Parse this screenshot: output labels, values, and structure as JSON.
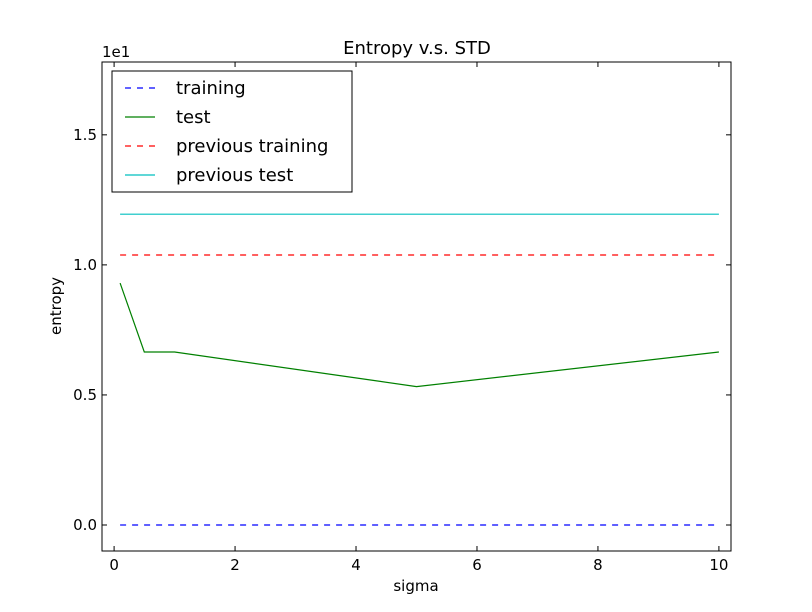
{
  "chart_data": {
    "type": "line",
    "title": "Entropy v.s. STD",
    "xlabel": "sigma",
    "ylabel": "entropy",
    "y_offset_label": "1e1",
    "xlim": [
      -0.2,
      10.2
    ],
    "ylim": [
      -0.1,
      1.78
    ],
    "x_ticks": [
      0,
      2,
      4,
      6,
      8,
      10
    ],
    "x_tick_labels": [
      "0",
      "2",
      "4",
      "6",
      "8",
      "10"
    ],
    "y_ticks": [
      0.0,
      0.5,
      1.0,
      1.5
    ],
    "y_tick_labels": [
      "0.0",
      "0.5",
      "1.0",
      "1.5"
    ],
    "grid": false,
    "legend_position": "upper-left",
    "series": [
      {
        "name": "training",
        "color": "#0000ff",
        "style": "dashed",
        "x": [
          0.1,
          10
        ],
        "y": [
          0.0,
          0.0
        ]
      },
      {
        "name": "test",
        "color": "#008000",
        "style": "solid",
        "x": [
          0.1,
          0.5,
          1,
          5,
          10
        ],
        "y": [
          0.93,
          0.665,
          0.665,
          0.532,
          0.665
        ]
      },
      {
        "name": "previous training",
        "color": "#ff0000",
        "style": "dashed",
        "x": [
          0.1,
          10
        ],
        "y": [
          1.038,
          1.038
        ]
      },
      {
        "name": "previous test",
        "color": "#00bfbf",
        "style": "solid",
        "x": [
          0.1,
          10
        ],
        "y": [
          1.195,
          1.195
        ]
      }
    ]
  }
}
